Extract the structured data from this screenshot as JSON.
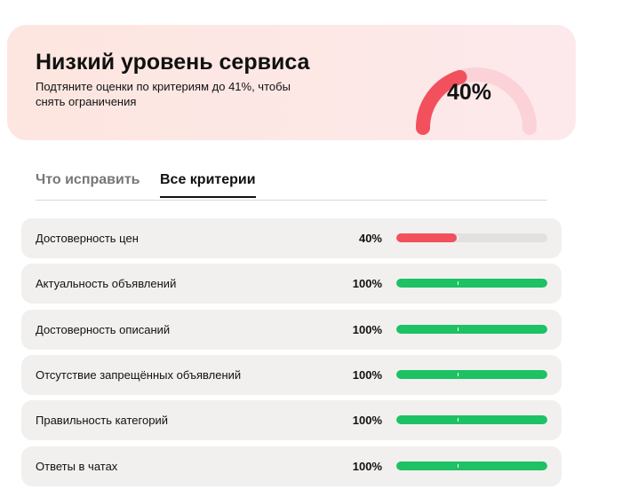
{
  "header": {
    "title": "Низкий уровень сервиса",
    "subtitle": "Подтяните оценки по критериям до 41%, чтобы снять ограничения",
    "gauge": {
      "value": 40,
      "label": "40%",
      "color": "#f2505c"
    }
  },
  "tabs": [
    "Что исправить",
    "Все критерии"
  ],
  "criteria": [
    {
      "name": "Достоверность цен",
      "value": 40,
      "label": "40%",
      "color": "#f2505c"
    },
    {
      "name": "Актуальность объявлений",
      "value": 100,
      "label": "100%",
      "color": "#1cc263"
    },
    {
      "name": "Достоверность описаний",
      "value": 100,
      "label": "100%",
      "color": "#1cc263"
    },
    {
      "name": "Отсутствие запрещённых объявлений",
      "value": 100,
      "label": "100%",
      "color": "#1cc263"
    },
    {
      "name": "Правильность категорий",
      "value": 100,
      "label": "100%",
      "color": "#1cc263"
    },
    {
      "name": "Ответы в чатах",
      "value": 100,
      "label": "100%",
      "color": "#1cc263"
    }
  ]
}
